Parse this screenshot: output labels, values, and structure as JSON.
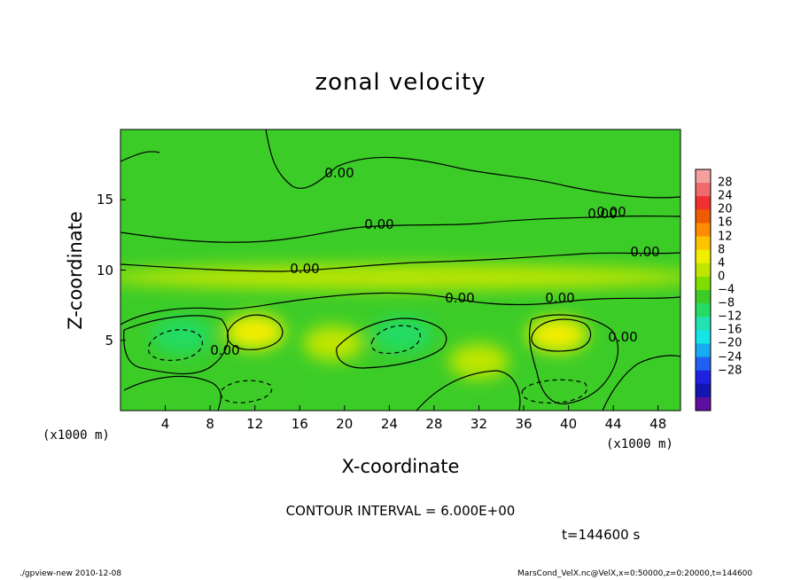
{
  "chart_data": {
    "type": "heatmap",
    "title": "zonal velocity",
    "xlabel": "X-coordinate",
    "ylabel": "Z-coordinate",
    "x_unit_note": "(x1000 m)",
    "xlim": [
      0,
      50
    ],
    "ylim": [
      0,
      20
    ],
    "x_ticks": [
      "4",
      "8",
      "12",
      "16",
      "20",
      "24",
      "28",
      "32",
      "36",
      "40",
      "44",
      "48"
    ],
    "y_ticks": [
      "5",
      "10",
      "15"
    ],
    "contour_interval_label": "CONTOUR INTERVAL = 6.000E+00",
    "contour_labels": [
      "0.00",
      "0.00",
      "0.00",
      "0.00",
      "0.00",
      "0.00",
      "0.00",
      "0.00",
      "0.00",
      "0.00"
    ],
    "time_label": "t=144600 s",
    "colorbar": {
      "labels": [
        "28",
        "24",
        "20",
        "16",
        "12",
        "8",
        "4",
        "0",
        "−4",
        "−8",
        "−12",
        "−16",
        "−20",
        "−24",
        "−28"
      ],
      "colors": [
        "#f4a0a0",
        "#ef6a6a",
        "#f03030",
        "#f05a00",
        "#ff8c00",
        "#ffc400",
        "#f2ee00",
        "#bfe600",
        "#80dd00",
        "#3ccc28",
        "#24dc64",
        "#22e2b4",
        "#14e6e6",
        "#18aaf2",
        "#2060f2",
        "#2020e4",
        "#1414b0",
        "#5e0fa0"
      ],
      "range": [
        -32,
        32
      ],
      "step": 4
    },
    "features": [
      {
        "kind": "negative_cell",
        "x": 5.5,
        "z": 5.3,
        "value": -9
      },
      {
        "kind": "negative_cell",
        "x": 25.2,
        "z": 5.4,
        "value": -8
      },
      {
        "kind": "negative_cell",
        "x": 41.0,
        "z": 1.3,
        "value": -7
      },
      {
        "kind": "negative_cell",
        "x": 13.5,
        "z": 1.3,
        "value": -6
      },
      {
        "kind": "negative_cell",
        "x": 3.5,
        "z": 1.2,
        "value": -5
      },
      {
        "kind": "positive_cell",
        "x": 12.0,
        "z": 5.6,
        "value": 7
      },
      {
        "kind": "positive_cell",
        "x": 39.0,
        "z": 5.4,
        "value": 7
      },
      {
        "kind": "positive_cell",
        "x": 19.0,
        "z": 4.8,
        "value": 4
      },
      {
        "kind": "positive_cell",
        "x": 32.0,
        "z": 3.5,
        "value": 4
      },
      {
        "kind": "positive_band",
        "x": 25.0,
        "z": 9.5,
        "value": 3
      }
    ]
  },
  "footer": {
    "left": "./gpview-new  2010-12-08",
    "right": "MarsCond_VelX.nc@VelX,x=0:50000,z=0:20000,t=144600"
  }
}
